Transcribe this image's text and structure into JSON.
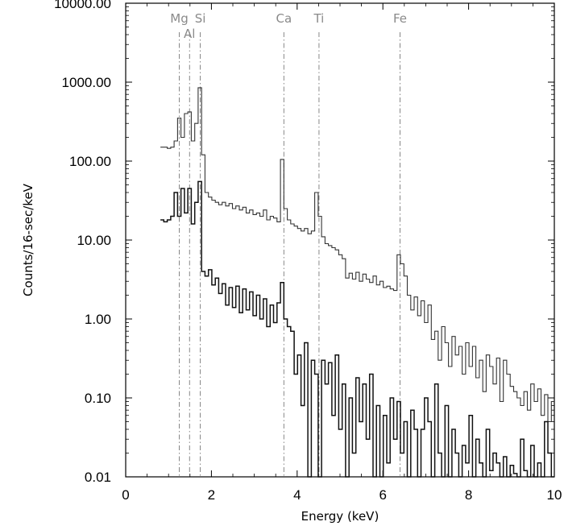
{
  "chart_data": {
    "type": "line",
    "title": "",
    "xlabel": "Energy (keV)",
    "ylabel": "Counts/16-sec/keV",
    "xlim": [
      0,
      10
    ],
    "ylim": [
      0.01,
      10000
    ],
    "yscale": "log",
    "grid": false,
    "xticks": [
      "0",
      "2",
      "4",
      "6",
      "8",
      "10"
    ],
    "yticks": [
      "0.01",
      "0.10",
      "1.00",
      "10.00",
      "100.00",
      "1000.00",
      "10000.00"
    ],
    "line_labels": [
      {
        "name": "Mg",
        "energy": 1.25
      },
      {
        "name": "Al",
        "energy": 1.49
      },
      {
        "name": "Si",
        "energy": 1.74
      },
      {
        "name": "Ca",
        "energy": 3.69
      },
      {
        "name": "Ti",
        "energy": 4.51
      },
      {
        "name": "Fe",
        "energy": 6.4
      }
    ],
    "series": [
      {
        "color": "#333333",
        "step": 0.08,
        "x": [
          0.85,
          0.93,
          1.01,
          1.09,
          1.17,
          1.25,
          1.33,
          1.41,
          1.49,
          1.57,
          1.65,
          1.73,
          1.81,
          1.89,
          1.97,
          2.05,
          2.13,
          2.21,
          2.29,
          2.37,
          2.45,
          2.53,
          2.61,
          2.69,
          2.77,
          2.85,
          2.93,
          3.01,
          3.09,
          3.17,
          3.25,
          3.33,
          3.41,
          3.49,
          3.57,
          3.65,
          3.73,
          3.81,
          3.89,
          3.97,
          4.05,
          4.13,
          4.21,
          4.29,
          4.37,
          4.45,
          4.53,
          4.61,
          4.69,
          4.77,
          4.85,
          4.93,
          5.01,
          5.09,
          5.17,
          5.25,
          5.33,
          5.41,
          5.49,
          5.57,
          5.65,
          5.73,
          5.81,
          5.89,
          5.97,
          6.05,
          6.13,
          6.21,
          6.29,
          6.37,
          6.45,
          6.53,
          6.61,
          6.69,
          6.77,
          6.85,
          6.93,
          7.01,
          7.09,
          7.17,
          7.25,
          7.33,
          7.41,
          7.49,
          7.57,
          7.65,
          7.73,
          7.81,
          7.89,
          7.97,
          8.05,
          8.13,
          8.21,
          8.29,
          8.37,
          8.45,
          8.53,
          8.61,
          8.69,
          8.77,
          8.85,
          8.93,
          9.01,
          9.09,
          9.17,
          9.25,
          9.33,
          9.41,
          9.49,
          9.57,
          9.65,
          9.73,
          9.81,
          9.89,
          9.97
        ],
        "y": [
          150,
          150,
          145,
          150,
          180,
          350,
          200,
          400,
          420,
          180,
          300,
          850,
          120,
          40,
          35,
          32,
          30,
          28,
          30,
          27,
          29,
          25,
          27,
          24,
          26,
          22,
          24,
          21,
          22,
          20,
          24,
          18,
          20,
          19,
          17,
          105,
          25,
          18,
          16,
          15,
          14,
          13,
          14,
          12,
          13,
          40,
          20,
          11,
          9,
          8.5,
          8,
          7.5,
          6.5,
          5.8,
          3.3,
          3.8,
          3.2,
          3.9,
          3.0,
          3.7,
          3.2,
          2.9,
          3.5,
          2.7,
          3.0,
          2.5,
          2.6,
          2.4,
          2.3,
          6.5,
          5.0,
          3.5,
          2.0,
          1.3,
          1.9,
          1.1,
          1.7,
          0.9,
          1.5,
          0.55,
          0.7,
          0.3,
          0.8,
          0.5,
          0.25,
          0.6,
          0.35,
          0.45,
          0.2,
          0.5,
          0.25,
          0.45,
          0.18,
          0.3,
          0.12,
          0.35,
          0.25,
          0.15,
          0.32,
          0.09,
          0.3,
          0.2,
          0.14,
          0.12,
          0.1,
          0.08,
          0.12,
          0.07,
          0.15,
          0.09,
          0.13,
          0.06,
          0.11,
          0.05,
          0.09
        ]
      },
      {
        "color": "#111111",
        "step": 0.08,
        "x": [
          0.85,
          0.93,
          1.01,
          1.09,
          1.17,
          1.25,
          1.33,
          1.41,
          1.49,
          1.57,
          1.65,
          1.73,
          1.81,
          1.89,
          1.97,
          2.05,
          2.13,
          2.21,
          2.29,
          2.37,
          2.45,
          2.53,
          2.61,
          2.69,
          2.77,
          2.85,
          2.93,
          3.01,
          3.09,
          3.17,
          3.25,
          3.33,
          3.41,
          3.49,
          3.57,
          3.65,
          3.73,
          3.81,
          3.89,
          3.97,
          4.05,
          4.13,
          4.21,
          4.29,
          4.37,
          4.45,
          4.53,
          4.61,
          4.69,
          4.77,
          4.85,
          4.93,
          5.01,
          5.09,
          5.17,
          5.25,
          5.33,
          5.41,
          5.49,
          5.57,
          5.65,
          5.73,
          5.81,
          5.89,
          5.97,
          6.05,
          6.13,
          6.21,
          6.29,
          6.37,
          6.45,
          6.53,
          6.61,
          6.69,
          6.77,
          6.85,
          6.93,
          7.01,
          7.09,
          7.17,
          7.25,
          7.33,
          7.41,
          7.49,
          7.57,
          7.65,
          7.73,
          7.81,
          7.89,
          7.97,
          8.05,
          8.13,
          8.21,
          8.29,
          8.37,
          8.45,
          8.53,
          8.61,
          8.69,
          8.77,
          8.85,
          8.93,
          9.01,
          9.09,
          9.17,
          9.25,
          9.33,
          9.41,
          9.49,
          9.57,
          9.65,
          9.73,
          9.81,
          9.89,
          9.97
        ],
        "y": [
          18,
          17,
          18,
          20,
          40,
          20,
          45,
          22,
          45,
          16,
          30,
          55,
          4.0,
          3.5,
          4.2,
          2.7,
          3.3,
          2.1,
          2.8,
          1.5,
          2.5,
          1.4,
          2.6,
          1.2,
          2.4,
          1.3,
          2.2,
          1.1,
          2.0,
          1.0,
          1.8,
          0.8,
          1.5,
          0.9,
          1.6,
          2.9,
          1.0,
          0.8,
          0.7,
          0.2,
          0.35,
          0.08,
          0.5,
          0.01,
          0.3,
          0.2,
          0.01,
          0.3,
          0.15,
          0.28,
          0.06,
          0.35,
          0.04,
          0.15,
          0.01,
          0.1,
          0.02,
          0.18,
          0.05,
          0.15,
          0.03,
          0.2,
          0.01,
          0.08,
          0.01,
          0.06,
          0.015,
          0.1,
          0.03,
          0.09,
          0.02,
          0.05,
          0.01,
          0.07,
          0.04,
          0.01,
          0.04,
          0.1,
          0.05,
          0.01,
          0.15,
          0.02,
          0.01,
          0.08,
          0.01,
          0.04,
          0.02,
          0.01,
          0.025,
          0.015,
          0.06,
          0.01,
          0.03,
          0.015,
          0.01,
          0.04,
          0.012,
          0.02,
          0.015,
          0.01,
          0.018,
          0.01,
          0.014,
          0.011,
          0.01,
          0.03,
          0.012,
          0.01,
          0.025,
          0.01,
          0.015,
          0.01,
          0.05,
          0.02,
          0.01
        ]
      }
    ]
  }
}
